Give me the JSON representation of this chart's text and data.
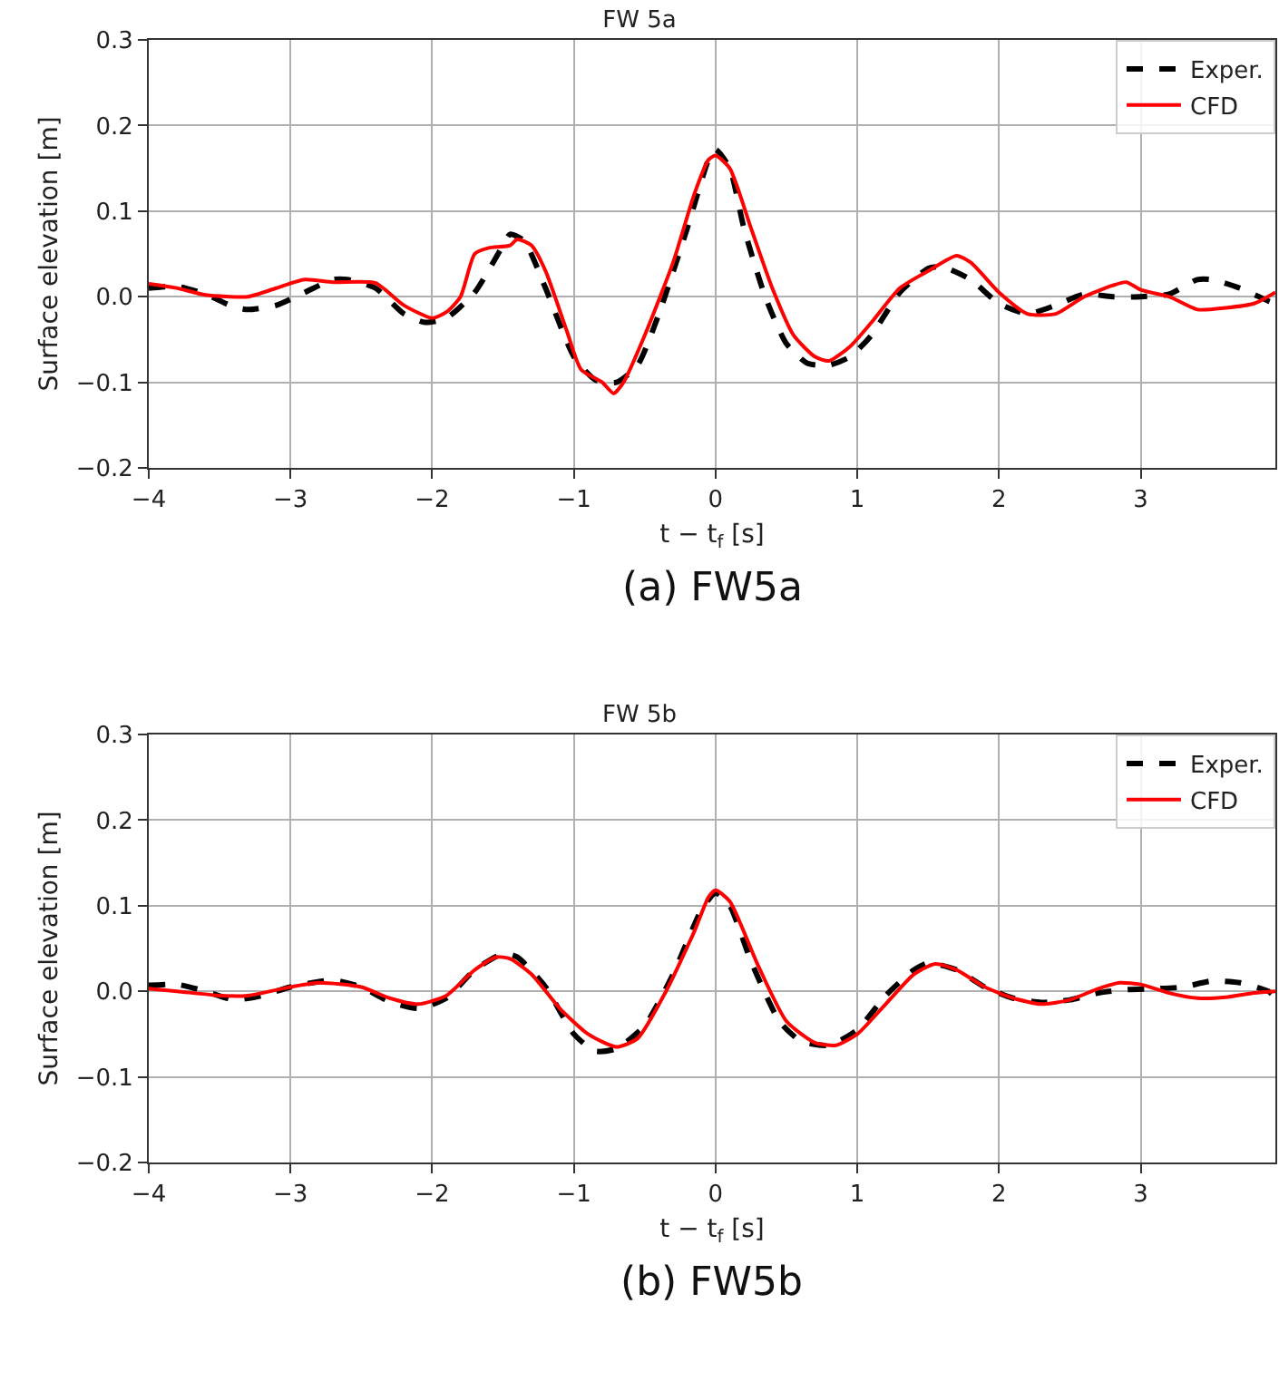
{
  "chart_data": [
    {
      "type": "line",
      "title": "FW 5a",
      "xlabel": "t − t$_{f}$ [s]",
      "ylabel": "Surface elevation [m]",
      "annotations": [
        "(a) FW5a"
      ],
      "xlim": [
        -4,
        3.95
      ],
      "xticks": [
        {
          "value": -4,
          "label": "−4"
        },
        {
          "value": -3,
          "label": "−3"
        },
        {
          "value": -2,
          "label": "−2"
        },
        {
          "value": -1,
          "label": "−1"
        },
        0,
        1,
        2,
        3
      ],
      "ylim": [
        -0.2,
        0.3
      ],
      "yticks": [
        {
          "value": -0.2,
          "label": "−0.2"
        },
        {
          "value": -0.1,
          "label": "−0.1"
        },
        {
          "value": 0,
          "label": "0.0"
        },
        {
          "value": 0.1,
          "label": "0.1"
        },
        {
          "value": 0.2,
          "label": "0.2"
        },
        {
          "value": 0.3,
          "label": "0.3"
        }
      ],
      "grid": true,
      "legend": "top right",
      "series": [
        {
          "name": "Exper.",
          "color": "#000000",
          "line_style": "dashed",
          "x": [
            -4,
            -3.8,
            -3.6,
            -3.4,
            -3.3,
            -3.1,
            -2.9,
            -2.7,
            -2.6,
            -2.4,
            -2.2,
            -2.05,
            -1.9,
            -1.7,
            -1.5,
            -1.45,
            -1.35,
            -1.2,
            -1,
            -0.85,
            -0.7,
            -0.55,
            -0.4,
            -0.2,
            -0.05,
            0,
            0.1,
            0.2,
            0.35,
            0.5,
            0.65,
            0.8,
            0.95,
            1.1,
            1.3,
            1.5,
            1.6,
            1.8,
            2,
            2.2,
            2.4,
            2.6,
            2.8,
            3,
            3.2,
            3.4,
            3.5,
            3.7,
            3.9,
            3.95
          ],
          "values": [
            0.01,
            0.012,
            0.003,
            -0.012,
            -0.015,
            -0.01,
            0.005,
            0.02,
            0.02,
            0.01,
            -0.02,
            -0.03,
            -0.025,
            0.005,
            0.06,
            0.073,
            0.065,
            0.01,
            -0.07,
            -0.097,
            -0.1,
            -0.08,
            -0.02,
            0.08,
            0.16,
            0.172,
            0.15,
            0.08,
            0.0,
            -0.055,
            -0.078,
            -0.08,
            -0.07,
            -0.045,
            0.005,
            0.033,
            0.035,
            0.02,
            -0.008,
            -0.02,
            -0.01,
            0.003,
            0.0,
            0.0,
            0.003,
            0.02,
            0.02,
            0.01,
            -0.005,
            -0.008
          ]
        },
        {
          "name": "CFD",
          "color": "#ff0000",
          "line_style": "solid",
          "x": [
            -4,
            -3.8,
            -3.6,
            -3.3,
            -3.1,
            -2.9,
            -2.7,
            -2.4,
            -2.2,
            -2.0,
            -1.9,
            -1.8,
            -1.7,
            -1.6,
            -1.45,
            -1.4,
            -1.3,
            -1.2,
            -1.05,
            -0.95,
            -0.8,
            -0.72,
            -0.65,
            -0.5,
            -0.3,
            -0.15,
            -0.05,
            0,
            0.1,
            0.25,
            0.4,
            0.55,
            0.7,
            0.8,
            0.95,
            1.1,
            1.3,
            1.5,
            1.7,
            1.8,
            2,
            2.2,
            2.4,
            2.6,
            2.8,
            2.9,
            3.0,
            3.2,
            3.4,
            3.6,
            3.8,
            3.95
          ],
          "values": [
            0.015,
            0.01,
            0.002,
            0.0,
            0.01,
            0.02,
            0.017,
            0.016,
            -0.01,
            -0.025,
            -0.018,
            0.0,
            0.05,
            0.057,
            0.06,
            0.067,
            0.06,
            0.03,
            -0.04,
            -0.085,
            -0.1,
            -0.113,
            -0.1,
            -0.045,
            0.04,
            0.12,
            0.16,
            0.165,
            0.15,
            0.08,
            0.01,
            -0.045,
            -0.07,
            -0.075,
            -0.058,
            -0.03,
            0.01,
            0.03,
            0.048,
            0.04,
            0.005,
            -0.02,
            -0.02,
            0.0,
            0.013,
            0.017,
            0.008,
            0.0,
            -0.015,
            -0.013,
            -0.008,
            0.005
          ]
        }
      ]
    },
    {
      "type": "line",
      "title": "FW 5b",
      "xlabel": "t − t$_{f}$ [s]",
      "ylabel": "Surface elevation [m]",
      "annotations": [
        "(b) FW5b"
      ],
      "xlim": [
        -4,
        3.95
      ],
      "xticks": [
        {
          "value": -4,
          "label": "−4"
        },
        {
          "value": -3,
          "label": "−3"
        },
        {
          "value": -2,
          "label": "−2"
        },
        {
          "value": -1,
          "label": "−1"
        },
        0,
        1,
        2,
        3
      ],
      "ylim": [
        -0.2,
        0.3
      ],
      "yticks": [
        {
          "value": -0.2,
          "label": "−0.2"
        },
        {
          "value": -0.1,
          "label": "−0.1"
        },
        {
          "value": 0,
          "label": "0.0"
        },
        {
          "value": 0.1,
          "label": "0.1"
        },
        {
          "value": 0.2,
          "label": "0.2"
        },
        {
          "value": 0.3,
          "label": "0.3"
        }
      ],
      "grid": true,
      "legend": "top right",
      "series": [
        {
          "name": "Exper.",
          "color": "#000000",
          "line_style": "dashed",
          "x": [
            -4,
            -3.8,
            -3.6,
            -3.4,
            -3.2,
            -3,
            -2.7,
            -2.5,
            -2.3,
            -2.1,
            -1.9,
            -1.7,
            -1.5,
            -1.4,
            -1.2,
            -1,
            -0.85,
            -0.7,
            -0.5,
            -0.3,
            -0.1,
            0,
            0.1,
            0.25,
            0.45,
            0.6,
            0.8,
            1,
            1.2,
            1.4,
            1.5,
            1.7,
            1.9,
            2.1,
            2.3,
            2.5,
            2.7,
            2.9,
            3.1,
            3.3,
            3.5,
            3.7,
            3.9,
            3.95
          ],
          "values": [
            0.007,
            0.008,
            0.0,
            -0.01,
            -0.005,
            0.005,
            0.013,
            0.005,
            -0.012,
            -0.02,
            -0.008,
            0.025,
            0.044,
            0.04,
            0.005,
            -0.05,
            -0.07,
            -0.067,
            -0.04,
            0.02,
            0.095,
            0.115,
            0.1,
            0.035,
            -0.035,
            -0.058,
            -0.063,
            -0.045,
            -0.005,
            0.025,
            0.033,
            0.025,
            0.005,
            -0.008,
            -0.013,
            -0.01,
            -0.002,
            0.002,
            0.003,
            0.005,
            0.012,
            0.01,
            0.0,
            -0.007
          ]
        },
        {
          "name": "CFD",
          "color": "#ff0000",
          "line_style": "solid",
          "x": [
            -4,
            -3.8,
            -3.5,
            -3.3,
            -3.0,
            -2.8,
            -2.5,
            -2.3,
            -2.1,
            -1.9,
            -1.7,
            -1.55,
            -1.45,
            -1.3,
            -1.1,
            -0.9,
            -0.7,
            -0.55,
            -0.35,
            -0.15,
            -0.05,
            0,
            0.1,
            0.3,
            0.5,
            0.7,
            0.85,
            1,
            1.2,
            1.4,
            1.55,
            1.7,
            1.9,
            2.1,
            2.3,
            2.5,
            2.7,
            2.85,
            3,
            3.2,
            3.4,
            3.6,
            3.8,
            3.95
          ],
          "values": [
            0.003,
            0.0,
            -0.005,
            -0.005,
            0.005,
            0.01,
            0.005,
            -0.008,
            -0.015,
            -0.005,
            0.025,
            0.04,
            0.038,
            0.02,
            -0.02,
            -0.05,
            -0.065,
            -0.055,
            0.0,
            0.07,
            0.11,
            0.118,
            0.105,
            0.03,
            -0.035,
            -0.06,
            -0.063,
            -0.05,
            -0.015,
            0.02,
            0.032,
            0.025,
            0.005,
            -0.008,
            -0.015,
            -0.01,
            0.003,
            0.01,
            0.008,
            -0.002,
            -0.008,
            -0.007,
            -0.002,
            0.0
          ]
        }
      ]
    }
  ]
}
